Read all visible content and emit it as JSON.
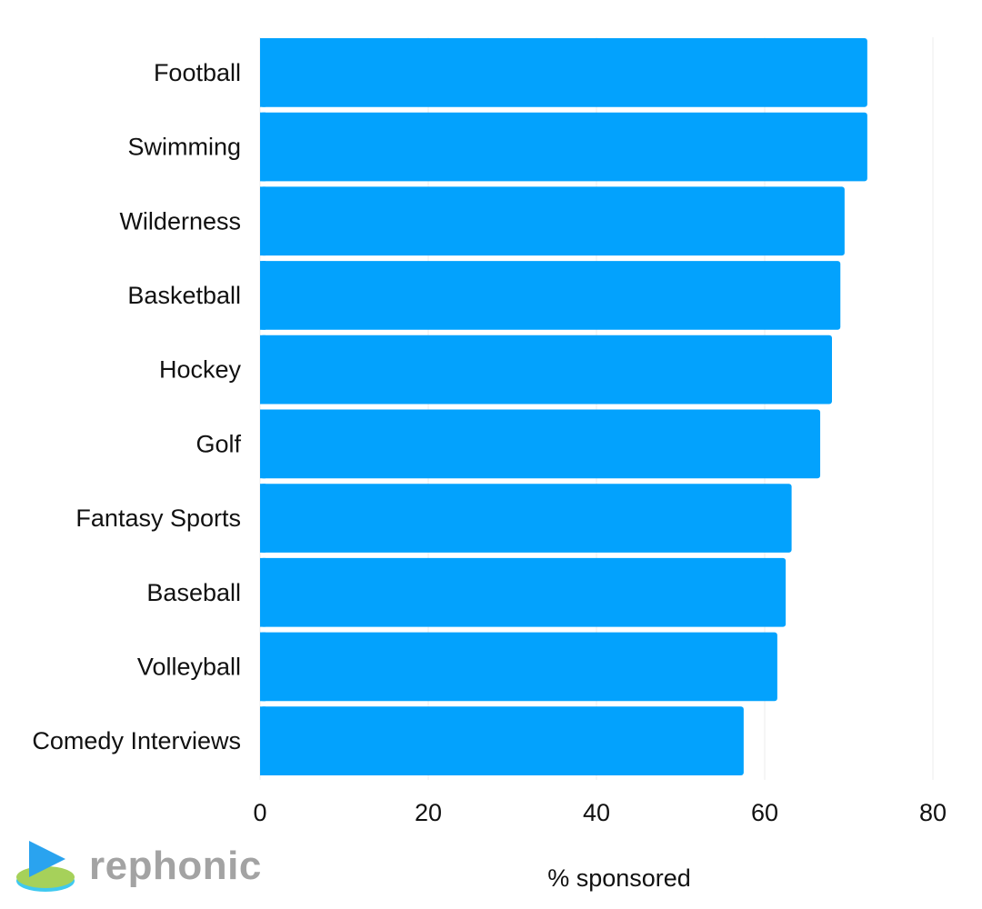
{
  "chart_data": {
    "type": "bar",
    "orientation": "horizontal",
    "categories": [
      "Football",
      "Swimming",
      "Wilderness",
      "Basketball",
      "Hockey",
      "Golf",
      "Fantasy Sports",
      "Baseball",
      "Volleyball",
      "Comedy Interviews"
    ],
    "values": [
      72.2,
      72.2,
      69.5,
      69.0,
      68.0,
      66.6,
      63.2,
      62.5,
      61.5,
      57.5
    ],
    "xlabel": "% sponsored",
    "ylabel": "",
    "xlim": [
      0,
      80
    ],
    "xticks": [
      "0",
      "20",
      "40",
      "60",
      "80"
    ],
    "grid": "vertical",
    "bar_color": "#03a2fd"
  },
  "brand": {
    "name": "rephonic",
    "icon": "play-triangle-logo-icon",
    "text_color": "#a3a3a3",
    "icon_colors": [
      "#2aa3ef",
      "#a6d15a",
      "#3fc9f0"
    ]
  },
  "colors": {
    "grid": "#ececec",
    "text": "#111111"
  }
}
